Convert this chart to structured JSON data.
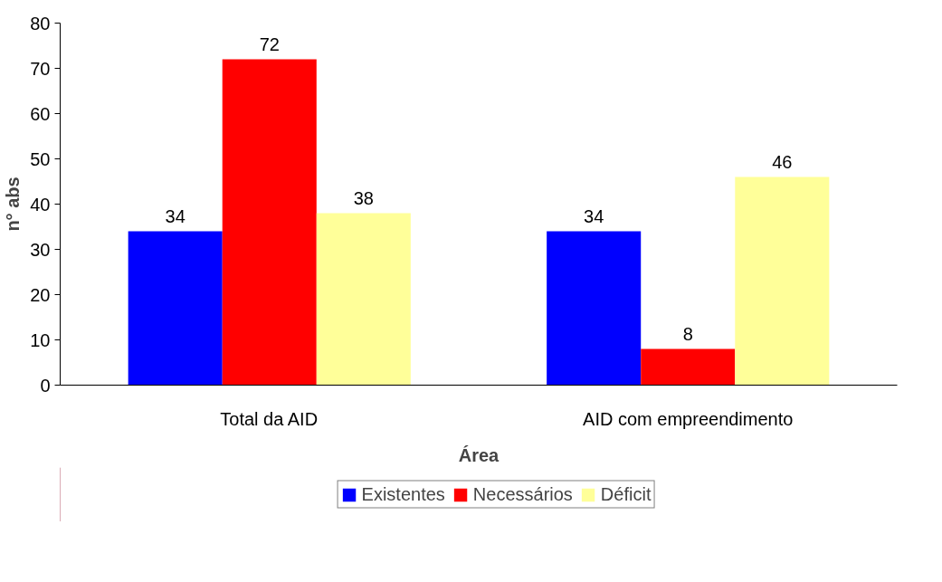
{
  "chart_data": {
    "type": "bar",
    "xlabel": "Área",
    "ylabel": "n° abs",
    "categories": [
      "Total da AID",
      "AID com empreendimento"
    ],
    "series": [
      {
        "name": "Existentes",
        "color": "#0000ff",
        "values": [
          34,
          34
        ]
      },
      {
        "name": "Necessários",
        "color": "#ff0000",
        "values": [
          72,
          8
        ]
      },
      {
        "name": "Déficit",
        "color": "#ffff99",
        "values": [
          38,
          46
        ]
      }
    ],
    "ylim": [
      0,
      80
    ],
    "yticks": [
      0,
      10,
      20,
      30,
      40,
      50,
      60,
      70,
      80
    ],
    "data_labels": true,
    "grid": false,
    "legend": "bottom"
  }
}
